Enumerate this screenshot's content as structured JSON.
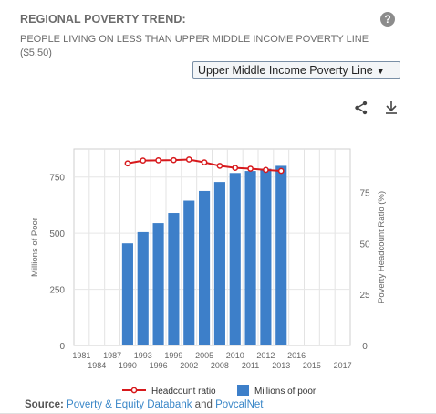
{
  "header": {
    "title": "REGIONAL POVERTY TREND:",
    "subtitle": "PEOPLE LIVING ON LESS THAN UPPER MIDDLE INCOME POVERTY LINE ($5.50)",
    "help_icon": "?",
    "select_value": "Upper Middle Income Poverty Line",
    "share_icon": "share-icon",
    "download_icon": "download-icon"
  },
  "source": {
    "label": "Source:",
    "link1": "Poverty & Equity Databank",
    "connector": "and",
    "link2": "PovcalNet"
  },
  "chart_data": {
    "type": "bar+line",
    "x_ticks_top": [
      "1981",
      "1987",
      "1993",
      "1999",
      "2005",
      "2010",
      "2012",
      "2016"
    ],
    "x_ticks_bottom": [
      "1984",
      "1990",
      "1996",
      "2002",
      "2008",
      "2011",
      "2013",
      "2015",
      "2017"
    ],
    "y_left": {
      "label": "Millions of Poor",
      "ticks": [
        0,
        250,
        500,
        750
      ],
      "range": [
        0,
        875
      ]
    },
    "y_right": {
      "label": "Poverty Headcount Ratio (%)",
      "ticks": [
        0,
        25,
        50,
        75
      ],
      "range": [
        0,
        96.25
      ]
    },
    "series": [
      {
        "name": "Millions of poor",
        "type": "bar",
        "color": "#3d7fc9",
        "points": [
          {
            "slot": 3,
            "value": 455
          },
          {
            "slot": 4,
            "value": 505
          },
          {
            "slot": 5,
            "value": 545
          },
          {
            "slot": 6,
            "value": 590
          },
          {
            "slot": 7,
            "value": 645
          },
          {
            "slot": 8,
            "value": 688
          },
          {
            "slot": 9,
            "value": 728
          },
          {
            "slot": 10,
            "value": 768
          },
          {
            "slot": 11,
            "value": 777
          },
          {
            "slot": 12,
            "value": 787
          },
          {
            "slot": 13,
            "value": 800
          }
        ]
      },
      {
        "name": "Headcount ratio",
        "type": "line",
        "color": "#d7191c",
        "points": [
          {
            "slot": 3,
            "value": 89.2
          },
          {
            "slot": 4,
            "value": 90.6
          },
          {
            "slot": 5,
            "value": 90.7
          },
          {
            "slot": 6,
            "value": 90.8
          },
          {
            "slot": 7,
            "value": 91.1
          },
          {
            "slot": 8,
            "value": 89.7
          },
          {
            "slot": 9,
            "value": 88.0
          },
          {
            "slot": 10,
            "value": 87.0
          },
          {
            "slot": 11,
            "value": 86.6
          },
          {
            "slot": 12,
            "value": 86.0
          },
          {
            "slot": 13,
            "value": 85.5
          }
        ]
      }
    ],
    "legend": {
      "position": "bottom"
    },
    "grid": true
  }
}
